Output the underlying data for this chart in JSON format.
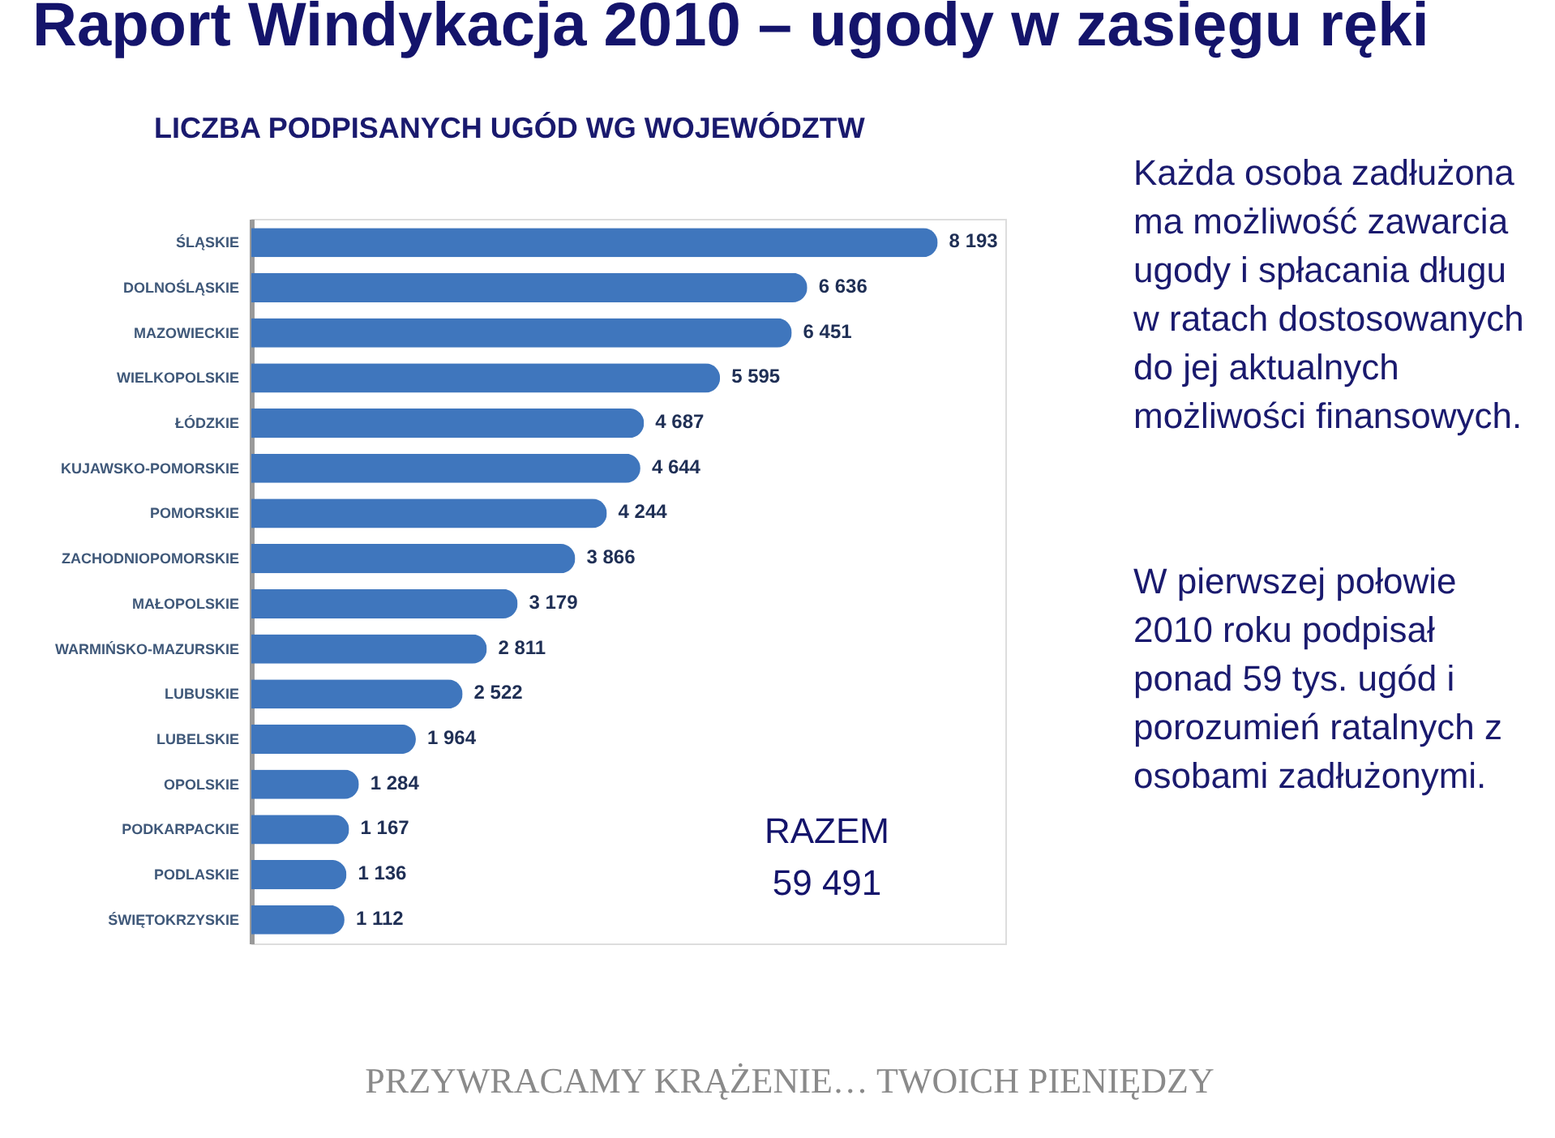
{
  "chart_data": {
    "type": "bar",
    "orientation": "horizontal",
    "title": "Raport Windykacja 2010 – ugody w zasięgu ręki",
    "subtitle": "LICZBA PODPISANYCH UGÓD WG WOJEWÓDZTW",
    "categories": [
      "ŚLĄSKIE",
      "DOLNOŚLĄSKIE",
      "MAZOWIECKIE",
      "WIELKOPOLSKIE",
      "ŁÓDZKIE",
      "KUJAWSKO-POMORSKIE",
      "POMORSKIE",
      "ZACHODNIOPOMORSKIE",
      "MAŁOPOLSKIE",
      "WARMIŃSKO-MAZURSKIE",
      "LUBUSKIE",
      "LUBELSKIE",
      "OPOLSKIE",
      "PODKARPACKIE",
      "PODLASKIE",
      "ŚWIĘTOKRZYSKIE"
    ],
    "values": [
      8193,
      6636,
      6451,
      5595,
      4687,
      4644,
      4244,
      3866,
      3179,
      2811,
      2522,
      1964,
      1284,
      1167,
      1136,
      1112
    ],
    "value_labels": [
      "8 193",
      "6 636",
      "6 451",
      "5 595",
      "4 687",
      "4 644",
      "4 244",
      "3 866",
      "3 179",
      "2 811",
      "2 522",
      "1 964",
      "1 284",
      "1 167",
      "1 136",
      "1 112"
    ],
    "color": "#3f76bd",
    "tick_labels": "y",
    "annotations": [
      "RAZEM\n59 491",
      "Każda osoba zadłużona\nma możliwość zawarcia\nugody i spłacania długu\nw ratach dostosowanych\ndo jej aktualnych\nmożliwości finansowych.",
      "W pierwszej połowie\n2010 roku podpisał\nponad 59 tys. ugód i\nporozumień ratalnych z\nosobami zadłużonymi.",
      "PRZYWRACAMY KRĄŻENIE… TWOICH PIENIĘDZY"
    ]
  }
}
